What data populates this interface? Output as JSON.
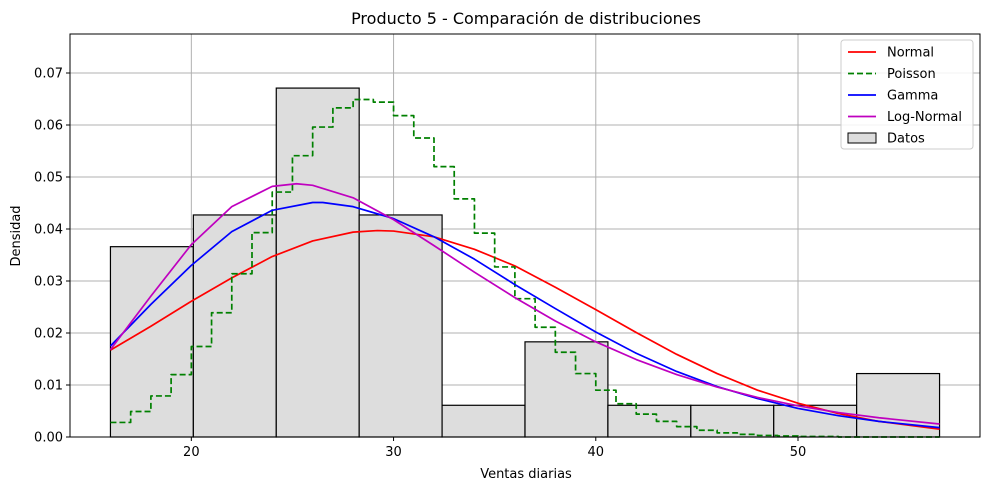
{
  "chart_data": {
    "type": "bar",
    "title": "Producto 5 - Comparación de distribuciones",
    "xlabel": "Ventas diarias",
    "ylabel": "Densidad",
    "xlim": [
      14,
      59
    ],
    "ylim": [
      0,
      0.0775
    ],
    "grid": true,
    "legend_placement": "top-right",
    "x_ticks": [
      20,
      30,
      40,
      50
    ],
    "x_tick_labels": [
      "20",
      "30",
      "40",
      "50"
    ],
    "y_ticks": [
      0,
      0.01,
      0.02,
      0.03,
      0.04,
      0.05,
      0.06,
      0.07
    ],
    "y_tick_labels": [
      "0.00",
      "0.01",
      "0.02",
      "0.03",
      "0.04",
      "0.05",
      "0.06",
      "0.07"
    ],
    "histogram": {
      "name": "Datos",
      "color": "#dddddd",
      "edge_color": "#000000",
      "bin_edges": [
        16,
        20.1,
        24.2,
        28.3,
        32.4,
        36.5,
        40.6,
        44.7,
        48.8,
        52.9,
        57
      ],
      "values": [
        0.0366,
        0.0427,
        0.0671,
        0.0427,
        0.0061,
        0.0183,
        0.0061,
        0.0061,
        0.0061,
        0.0122
      ]
    },
    "series": [
      {
        "name": "Normal",
        "color": "#ff0000",
        "style": "solid",
        "x": [
          16,
          18,
          20,
          22,
          24,
          26,
          28,
          29.2,
          30,
          32,
          34,
          36,
          38,
          40,
          42,
          44,
          46,
          48,
          50,
          52,
          54,
          57
        ],
        "y": [
          0.0167,
          0.0213,
          0.0261,
          0.0306,
          0.0347,
          0.0377,
          0.0394,
          0.0397,
          0.0396,
          0.0385,
          0.0361,
          0.0329,
          0.0288,
          0.0245,
          0.0201,
          0.0159,
          0.0122,
          0.009,
          0.0065,
          0.0045,
          0.003,
          0.0015
        ]
      },
      {
        "name": "Poisson",
        "color": "#008000",
        "style": "dashed",
        "x": [
          16,
          17,
          18,
          19,
          20,
          21,
          22,
          23,
          24,
          25,
          26,
          27,
          28,
          29,
          30,
          31,
          32,
          33,
          34,
          35,
          36,
          37,
          38,
          39,
          40,
          41,
          42,
          43,
          44,
          45,
          46,
          47,
          48,
          49,
          50,
          51,
          52,
          53,
          54,
          55,
          56,
          57
        ],
        "y": [
          0.0028,
          0.0049,
          0.0079,
          0.012,
          0.0174,
          0.0239,
          0.0314,
          0.0393,
          0.0471,
          0.0541,
          0.0596,
          0.0633,
          0.0649,
          0.0644,
          0.0618,
          0.0575,
          0.052,
          0.0458,
          0.0392,
          0.0327,
          0.0266,
          0.0211,
          0.0163,
          0.0122,
          0.009,
          0.0064,
          0.0044,
          0.003,
          0.002,
          0.0013,
          0.0008,
          0.0005,
          0.0003,
          0.0002,
          0.0001,
          0.0001,
          0.0,
          0.0,
          0.0,
          0.0,
          0.0,
          0.0
        ]
      },
      {
        "name": "Gamma",
        "color": "#0000ff",
        "style": "solid",
        "x": [
          16,
          18,
          20,
          22,
          24,
          26,
          26.5,
          28,
          30,
          32,
          34,
          36,
          38,
          40,
          42,
          44,
          46,
          48,
          50,
          52,
          54,
          57
        ],
        "y": [
          0.0175,
          0.0255,
          0.033,
          0.0395,
          0.0436,
          0.0451,
          0.0451,
          0.0443,
          0.042,
          0.0385,
          0.0342,
          0.0293,
          0.0247,
          0.0202,
          0.0161,
          0.0126,
          0.0097,
          0.0074,
          0.0055,
          0.0041,
          0.003,
          0.0018
        ]
      },
      {
        "name": "Log-Normal",
        "color": "#bf00bf",
        "style": "solid",
        "x": [
          16,
          18,
          20,
          22,
          24,
          25.2,
          26,
          28,
          30,
          32,
          34,
          36,
          38,
          40,
          42,
          44,
          46,
          48,
          50,
          52,
          54,
          57
        ],
        "y": [
          0.0168,
          0.0271,
          0.037,
          0.0443,
          0.0482,
          0.0487,
          0.0484,
          0.046,
          0.0418,
          0.0368,
          0.0317,
          0.0268,
          0.0223,
          0.0183,
          0.0149,
          0.012,
          0.0096,
          0.0076,
          0.006,
          0.0047,
          0.0037,
          0.0025
        ]
      }
    ]
  }
}
